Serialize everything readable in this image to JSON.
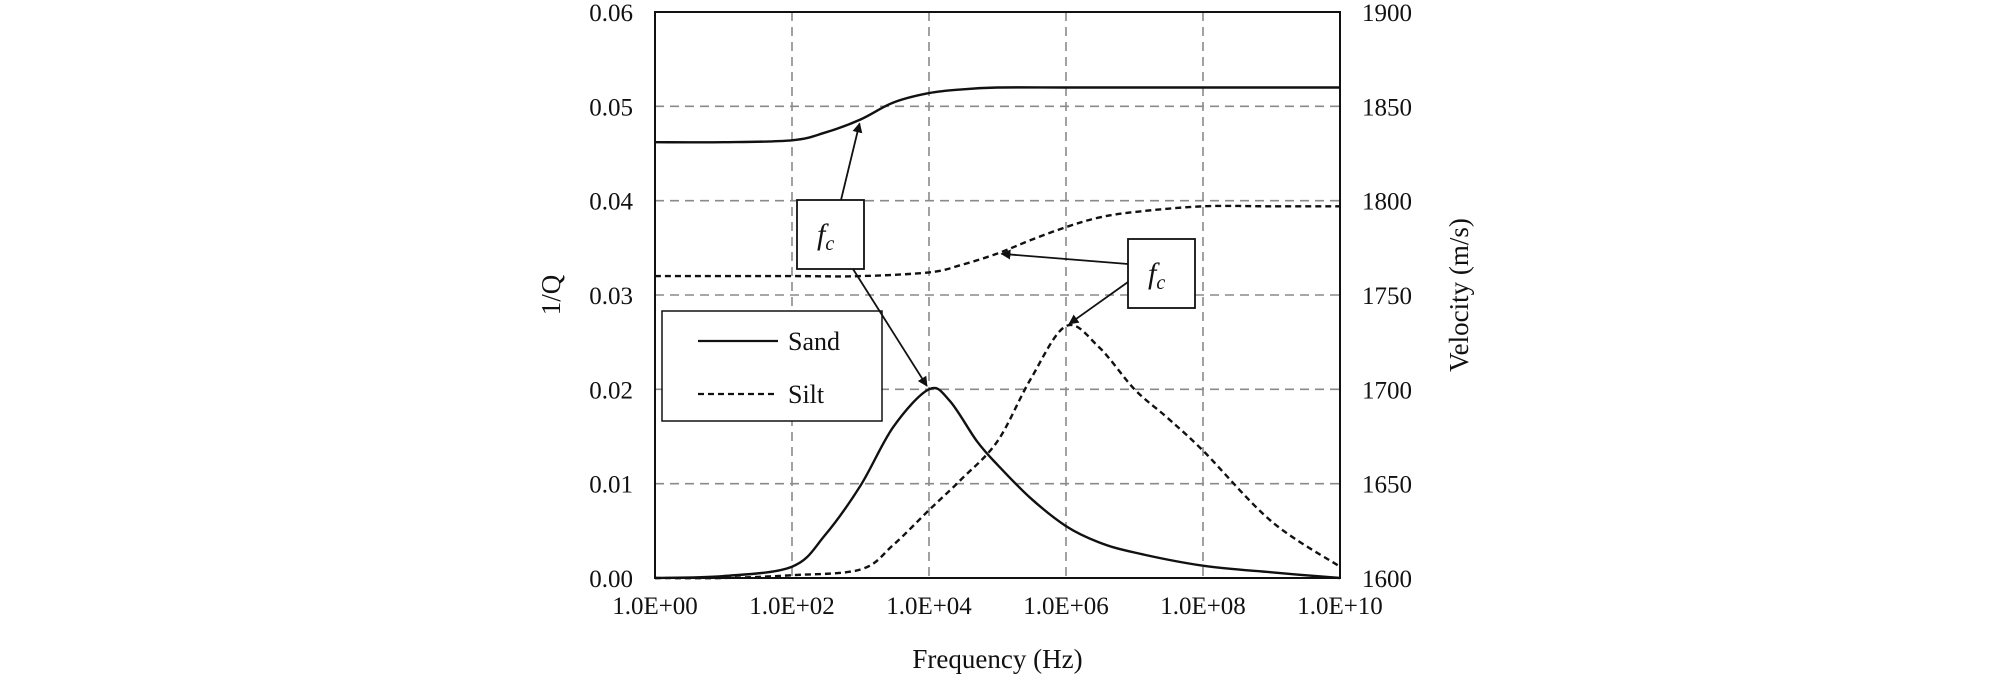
{
  "chart_data": {
    "type": "line",
    "xlabel": "Frequency (Hz)",
    "ylabel_left": "1/Q",
    "ylabel_right": "Velocity (m/s)",
    "x_scale": "log",
    "xlim": [
      1,
      10000000000
    ],
    "ylim_left": [
      0,
      0.06
    ],
    "ylim_right": [
      1600,
      1900
    ],
    "grid": true,
    "legend_position": "left",
    "x_ticks": [
      {
        "value": 1,
        "label": "1.0E+00"
      },
      {
        "value": 100,
        "label": "1.0E+02"
      },
      {
        "value": 10000,
        "label": "1.0E+04"
      },
      {
        "value": 1000000,
        "label": "1.0E+06"
      },
      {
        "value": 100000000,
        "label": "1.0E+08"
      },
      {
        "value": 10000000000,
        "label": "1.0E+10"
      }
    ],
    "y_ticks_left": [
      {
        "value": 0.0,
        "label": "0.00"
      },
      {
        "value": 0.01,
        "label": "0.01"
      },
      {
        "value": 0.02,
        "label": "0.02"
      },
      {
        "value": 0.03,
        "label": "0.03"
      },
      {
        "value": 0.04,
        "label": "0.04"
      },
      {
        "value": 0.05,
        "label": "0.05"
      },
      {
        "value": 0.06,
        "label": "0.06"
      }
    ],
    "y_ticks_right": [
      {
        "value": 1600,
        "label": "1600"
      },
      {
        "value": 1650,
        "label": "1650"
      },
      {
        "value": 1700,
        "label": "1700"
      },
      {
        "value": 1750,
        "label": "1750"
      },
      {
        "value": 1800,
        "label": "1800"
      },
      {
        "value": 1850,
        "label": "1850"
      },
      {
        "value": 1900,
        "label": "1900"
      }
    ],
    "series": [
      {
        "name": "Sand",
        "quantity": "velocity",
        "axis": "right",
        "style": "solid",
        "x": [
          1,
          10,
          100,
          300,
          1000,
          3000,
          10000,
          30000,
          100000,
          1000000,
          10000000,
          100000000,
          10000000000
        ],
        "y": [
          1831,
          1831,
          1832,
          1836,
          1843,
          1852,
          1857,
          1859,
          1860,
          1860,
          1860,
          1860,
          1860
        ]
      },
      {
        "name": "Silt",
        "quantity": "velocity",
        "axis": "right",
        "style": "dashed",
        "x": [
          1,
          100,
          1000,
          10000,
          30000,
          100000,
          300000,
          1000000,
          3000000,
          10000000,
          100000000,
          1000000000,
          10000000000
        ],
        "y": [
          1760,
          1760,
          1760,
          1762,
          1766,
          1772,
          1779,
          1786,
          1791,
          1794,
          1797,
          1797,
          1797
        ]
      },
      {
        "name": "Sand",
        "quantity": "1/Q",
        "axis": "left",
        "style": "solid",
        "x": [
          1,
          10,
          100,
          300,
          1000,
          3000,
          10000,
          20000,
          50000,
          100000,
          300000,
          1000000,
          3000000,
          10000000,
          100000000,
          1000000000,
          10000000000
        ],
        "y": [
          0.0,
          0.0002,
          0.0012,
          0.0045,
          0.0098,
          0.016,
          0.02,
          0.0188,
          0.0145,
          0.012,
          0.0085,
          0.0055,
          0.0038,
          0.0027,
          0.0013,
          0.0006,
          0.0
        ]
      },
      {
        "name": "Silt",
        "quantity": "1/Q",
        "axis": "left",
        "style": "dashed",
        "x": [
          1,
          10,
          100,
          1000,
          3000,
          10000,
          30000,
          100000,
          300000,
          1000000,
          3000000,
          10000000,
          30000000,
          100000000,
          1000000000,
          10000000000
        ],
        "y": [
          0.0,
          0.0,
          0.0003,
          0.0009,
          0.0035,
          0.0072,
          0.0105,
          0.0145,
          0.021,
          0.0267,
          0.0245,
          0.02,
          0.017,
          0.0135,
          0.006,
          0.0012
        ]
      }
    ],
    "legend": [
      {
        "label": "Sand",
        "style": "solid"
      },
      {
        "label": "Silt",
        "style": "dashed"
      }
    ],
    "annotations": [
      {
        "text": "f",
        "subscript": "c",
        "points_to": [
          {
            "series": "Sand",
            "quantity": "velocity",
            "x": 1000
          },
          {
            "series": "Sand",
            "quantity": "1/Q",
            "x": 10000
          }
        ]
      },
      {
        "text": "f",
        "subscript": "c",
        "points_to": [
          {
            "series": "Silt",
            "quantity": "velocity",
            "x": 100000
          },
          {
            "series": "Silt",
            "quantity": "1/Q",
            "x": 1000000
          }
        ]
      }
    ]
  }
}
